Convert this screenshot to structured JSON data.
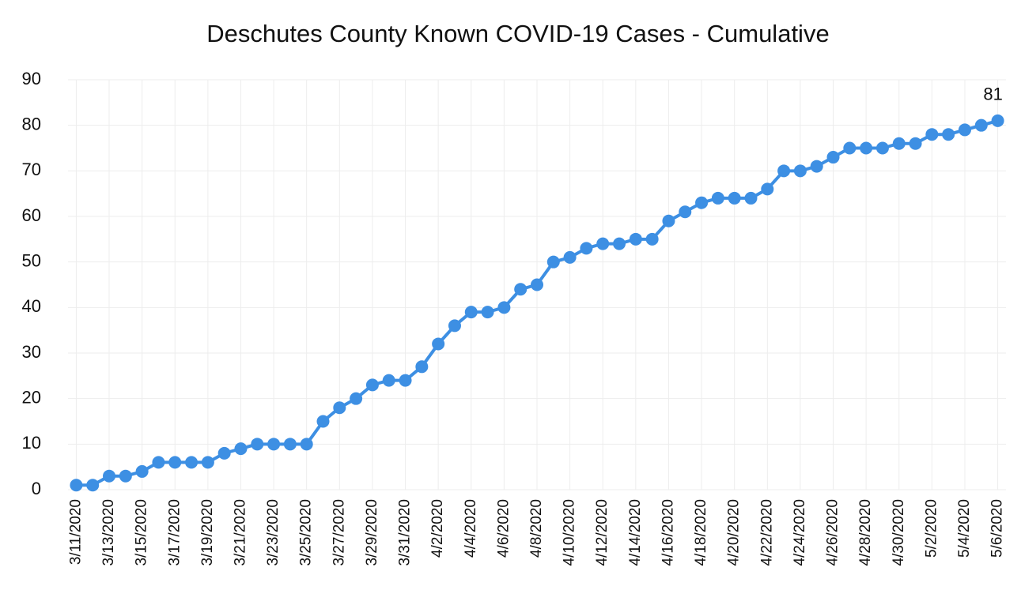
{
  "chart_data": {
    "type": "line",
    "title": "Deschutes County Known COVID-19 Cases - Cumulative",
    "categories": [
      "3/11/2020",
      null,
      "3/13/2020",
      null,
      "3/15/2020",
      null,
      "3/17/2020",
      null,
      "3/19/2020",
      null,
      "3/21/2020",
      null,
      "3/23/2020",
      null,
      "3/25/2020",
      null,
      "3/27/2020",
      null,
      "3/29/2020",
      null,
      "3/31/2020",
      null,
      "4/2/2020",
      null,
      "4/4/2020",
      null,
      "4/6/2020",
      null,
      "4/8/2020",
      null,
      "4/10/2020",
      null,
      "4/12/2020",
      null,
      "4/14/2020",
      null,
      "4/16/2020",
      null,
      "4/18/2020",
      null,
      "4/20/2020",
      null,
      "4/22/2020",
      null,
      "4/24/2020",
      null,
      "4/26/2020",
      null,
      "4/28/2020",
      null,
      "4/30/2020",
      null,
      "5/2/2020",
      null,
      "5/4/2020",
      null,
      "5/6/2020"
    ],
    "values": [
      1,
      1,
      3,
      3,
      4,
      6,
      6,
      6,
      6,
      8,
      9,
      10,
      10,
      10,
      10,
      15,
      18,
      20,
      23,
      24,
      24,
      27,
      32,
      36,
      39,
      39,
      40,
      44,
      45,
      50,
      51,
      53,
      54,
      54,
      55,
      55,
      59,
      61,
      63,
      64,
      64,
      64,
      66,
      70,
      70,
      71,
      73,
      75,
      75,
      75,
      76,
      76,
      78,
      78,
      79,
      80,
      81
    ],
    "color": "#3d8fe3",
    "ylim": [
      0,
      90
    ],
    "yticks": [
      0,
      10,
      20,
      30,
      40,
      50,
      60,
      70,
      80,
      90
    ],
    "grid": true
  }
}
